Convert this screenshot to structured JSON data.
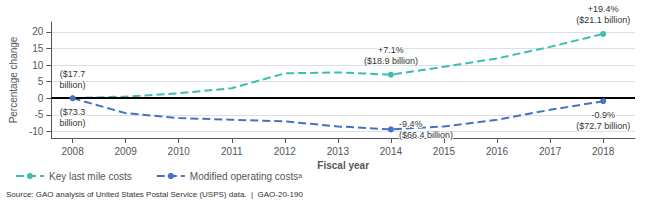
{
  "chart_data": {
    "type": "line",
    "x": [
      2008,
      2009,
      2010,
      2011,
      2012,
      2013,
      2014,
      2015,
      2016,
      2017,
      2018
    ],
    "xlim": [
      2007.6,
      2018.6
    ],
    "xticks": [
      2008,
      2009,
      2010,
      2011,
      2012,
      2013,
      2014,
      2015,
      2016,
      2017,
      2018
    ],
    "ylim": [
      -12,
      23
    ],
    "yticks": [
      -10,
      -5,
      0,
      5,
      10,
      15,
      20
    ],
    "xlabel": "Fiscal year",
    "ylabel": "Percentage change",
    "grid": true,
    "legend": "lower left",
    "series": [
      {
        "name": "Key last mile costs",
        "color": "#3dbfb0",
        "line_style": "dashed",
        "values": [
          0,
          0.5,
          1.5,
          3.0,
          7.5,
          7.8,
          7.1,
          9.5,
          12.0,
          15.5,
          19.4
        ],
        "annotations": [
          {
            "x": 2008,
            "text": "($17.7\nbillion)"
          },
          {
            "x": 2014,
            "text": "+7.1%\n($18.9 billion)"
          },
          {
            "x": 2018,
            "text": "+19.4%\n($21.1 billion)"
          }
        ]
      },
      {
        "name": "Modified operating costsᵃ",
        "color": "#4472c4",
        "line_style": "dashed",
        "values": [
          0,
          -4.5,
          -6.0,
          -6.5,
          -7.0,
          -8.5,
          -9.4,
          -8.5,
          -6.5,
          -3.5,
          -0.9
        ],
        "annotations": [
          {
            "x": 2008,
            "text": "($73.3\nbillion)"
          },
          {
            "x": 2014,
            "text": "-9.4%\n($66.4 billion)"
          },
          {
            "x": 2018,
            "text": "-0.9%\n($72.7 billion)"
          }
        ]
      }
    ],
    "reference_line": {
      "y": 0,
      "color": "#000000"
    },
    "source": "Source: GAO analysis of United States Postal Service (USPS) data.  |  GAO-20-190"
  }
}
